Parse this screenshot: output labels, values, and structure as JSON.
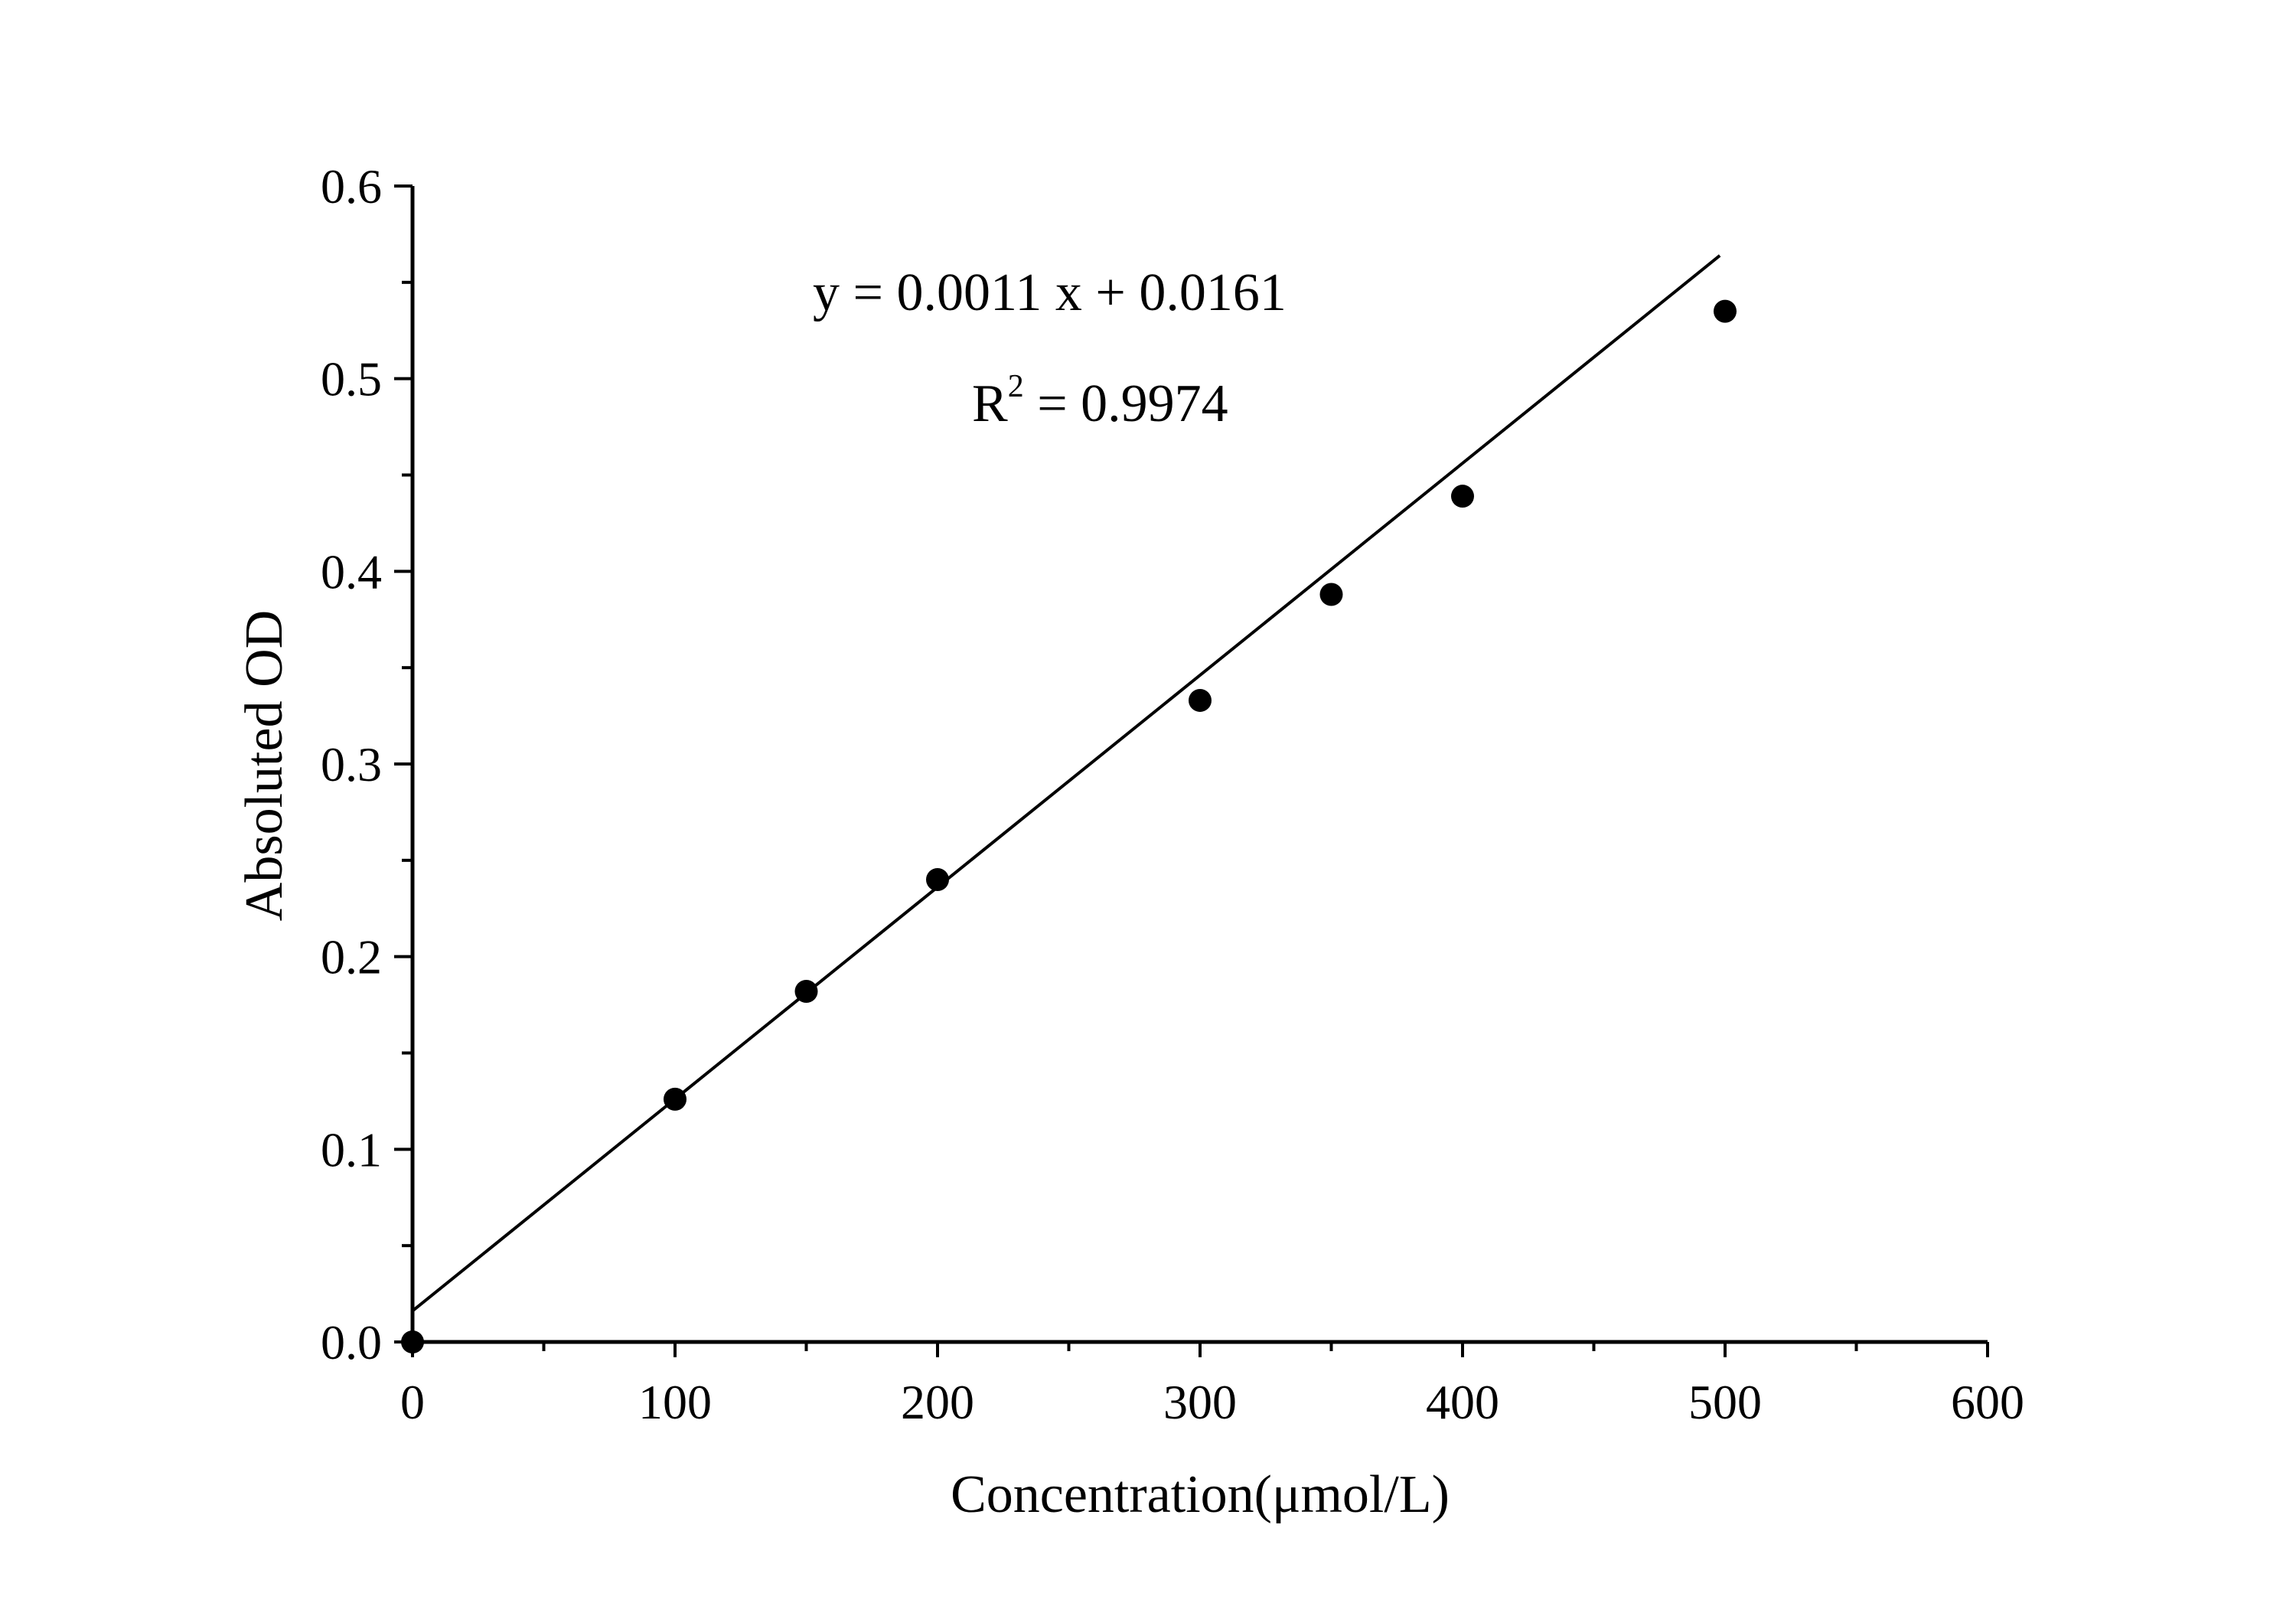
{
  "chart_data": {
    "type": "scatter",
    "title": "",
    "xlabel": "Concentration(μmol/L)",
    "ylabel": "Absoluted OD",
    "xlim": [
      0,
      600
    ],
    "ylim": [
      0.0,
      0.6
    ],
    "x_ticks": [
      0,
      100,
      200,
      300,
      400,
      500,
      600
    ],
    "x_tick_labels": [
      "0",
      "100",
      "200",
      "300",
      "400",
      "500",
      "600"
    ],
    "x_minor_step": 50,
    "y_ticks": [
      0.0,
      0.1,
      0.2,
      0.3,
      0.4,
      0.5,
      0.6
    ],
    "y_tick_labels": [
      "0.0",
      "0.1",
      "0.2",
      "0.3",
      "0.4",
      "0.5",
      "0.6"
    ],
    "y_minor_step": 0.05,
    "grid": false,
    "series": [
      {
        "marker": "circle",
        "color": "#000000",
        "points": [
          {
            "x": 0,
            "y": 0.0
          },
          {
            "x": 100,
            "y": 0.126
          },
          {
            "x": 150,
            "y": 0.182
          },
          {
            "x": 200,
            "y": 0.24
          },
          {
            "x": 300,
            "y": 0.333
          },
          {
            "x": 350,
            "y": 0.388
          },
          {
            "x": 400,
            "y": 0.439
          },
          {
            "x": 500,
            "y": 0.535
          }
        ]
      }
    ],
    "fit_line": {
      "slope": 0.0011,
      "intercept": 0.0161,
      "x_range": [
        0,
        500
      ],
      "color": "#000000"
    },
    "annotations": {
      "equation": "y = 0.0011 x + 0.0161",
      "r2_prefix": "R",
      "r2_superscript": "2",
      "r2_value": " = 0.9974"
    }
  }
}
